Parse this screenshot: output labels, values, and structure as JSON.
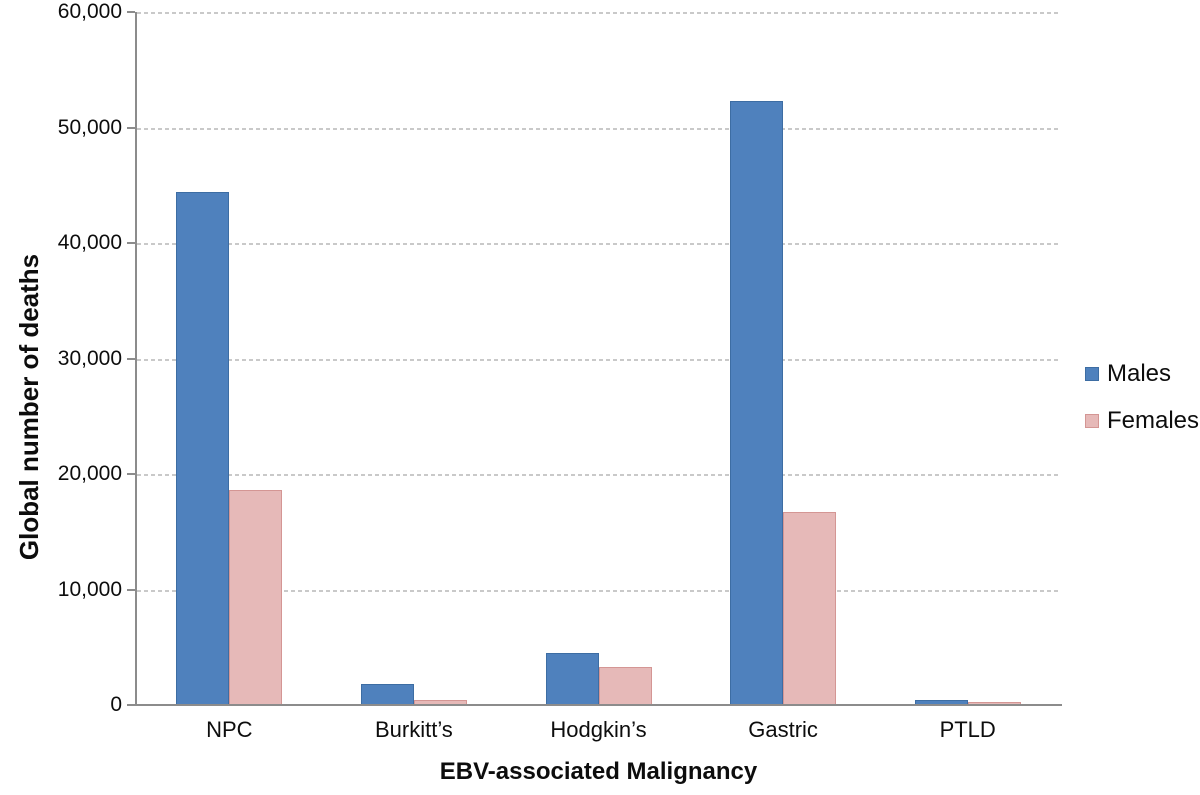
{
  "chart_data": {
    "type": "bar",
    "title": "",
    "xlabel": "EBV-associated Malignancy",
    "ylabel": "Global number of deaths",
    "categories": [
      "NPC",
      "Burkitt’s",
      "Hodgkin’s",
      "Gastric",
      "PTLD"
    ],
    "series": [
      {
        "name": "Males",
        "color": "#4F81BD",
        "border_color": "#3D6DA3",
        "values": [
          44400,
          1800,
          4500,
          52300,
          400
        ]
      },
      {
        "name": "Females",
        "color": "#E6B9B8",
        "border_color": "#D49694",
        "values": [
          18600,
          400,
          3300,
          16700,
          300
        ]
      }
    ],
    "ylim": [
      0,
      60000
    ],
    "ytick_step": 10000,
    "ytick_labels": [
      "0",
      "10,000",
      "20,000",
      "30,000",
      "40,000",
      "50,000",
      "60,000"
    ],
    "grid": "horizontal-dashed",
    "legend_position": "right"
  },
  "colors": {
    "background": "#FFFFFF",
    "axis_line": "#8C8C8C",
    "gridline": "#C9C9C9",
    "text": "#0D0D0D"
  }
}
